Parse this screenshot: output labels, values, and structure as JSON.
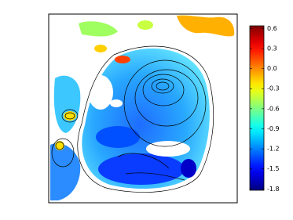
{
  "chart_data": {
    "type": "heatmap",
    "colormap": "jet",
    "clim": [
      -1.82,
      0.64
    ],
    "cticks": [
      0.6,
      0.3,
      {
        "value": 0,
        "label": "0.0"
      },
      -0.3,
      -0.6,
      -0.9,
      -1.2,
      -1.5,
      -1.8
    ]
  }
}
